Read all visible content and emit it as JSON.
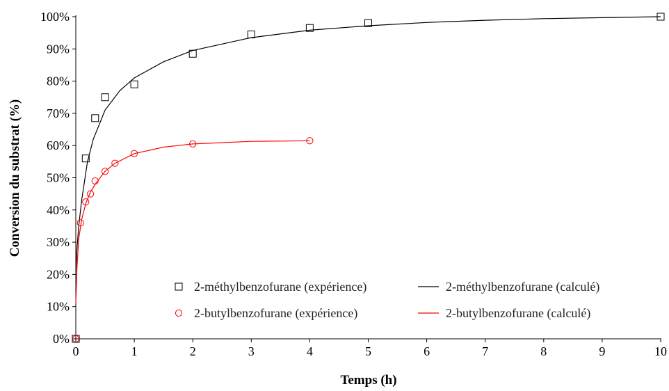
{
  "chart_data": {
    "type": "scatter",
    "title": "",
    "xlabel": "Temps (h)",
    "ylabel": "Conversion du substrat (%)",
    "xlim": [
      0,
      10
    ],
    "ylim": [
      0,
      100
    ],
    "x_ticks": [
      "0",
      "1",
      "2",
      "3",
      "4",
      "5",
      "6",
      "7",
      "8",
      "9",
      "10"
    ],
    "y_ticks": [
      "0%",
      "10%",
      "20%",
      "30%",
      "40%",
      "50%",
      "60%",
      "70%",
      "80%",
      "90%",
      "100%"
    ],
    "grid": false,
    "legend_position": "bottom-right",
    "series": [
      {
        "name": "2-méthylbenzofurane (expérience)",
        "kind": "scatter",
        "marker": "square",
        "color": "#000000",
        "x": [
          0,
          0.17,
          0.33,
          0.5,
          1,
          2,
          3,
          4,
          5,
          10
        ],
        "y": [
          0,
          56,
          68.5,
          75,
          79,
          88.5,
          94.5,
          96.5,
          98,
          100
        ]
      },
      {
        "name": "2-méthylbenzofurane (calculé)",
        "kind": "line",
        "color": "#000000",
        "x": [
          0,
          0.02,
          0.05,
          0.1,
          0.2,
          0.3,
          0.5,
          0.75,
          1,
          1.5,
          2,
          3,
          4,
          5,
          6,
          7,
          8,
          9,
          10
        ],
        "y": [
          21,
          28,
          35,
          43,
          55,
          62,
          71,
          77,
          81,
          86,
          89.5,
          93.5,
          95.8,
          97.2,
          98.2,
          98.9,
          99.4,
          99.7,
          100
        ]
      },
      {
        "name": "2-butylbenzofurane (expérience)",
        "kind": "scatter",
        "marker": "circle",
        "color": "#ff0000",
        "x": [
          0,
          0.08,
          0.17,
          0.25,
          0.33,
          0.5,
          0.67,
          1,
          2,
          4
        ],
        "y": [
          0,
          36,
          42.5,
          45,
          49,
          52,
          54.5,
          57.5,
          60.5,
          61.5
        ]
      },
      {
        "name": "2-butylbenzofurane (calculé)",
        "kind": "line",
        "color": "#ff0000",
        "x": [
          0,
          0.02,
          0.05,
          0.1,
          0.17,
          0.25,
          0.33,
          0.5,
          0.67,
          1,
          1.5,
          2,
          3,
          4
        ],
        "y": [
          11,
          22,
          31,
          37,
          42,
          45.5,
          48,
          52,
          54.5,
          57.5,
          59.5,
          60.5,
          61.3,
          61.5
        ]
      }
    ]
  }
}
